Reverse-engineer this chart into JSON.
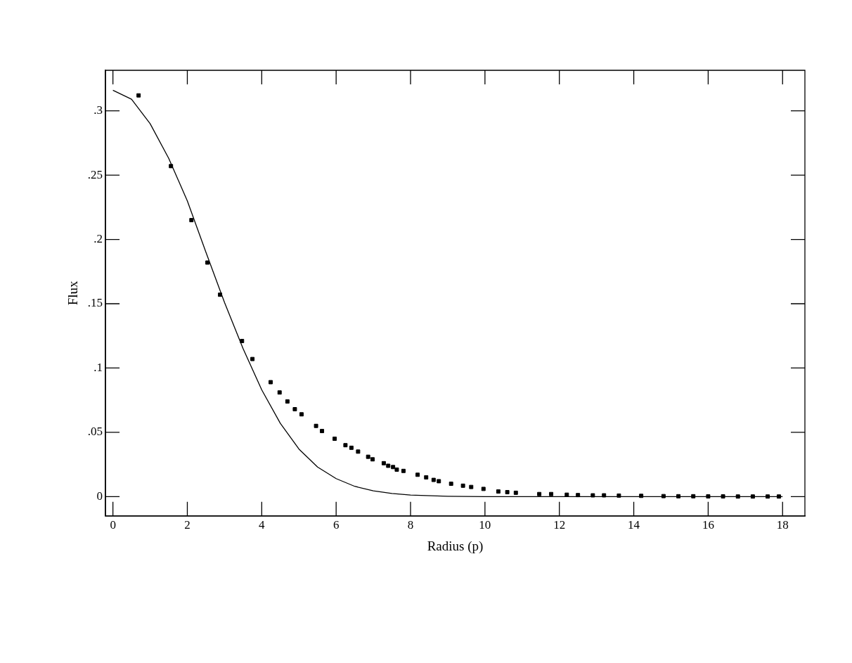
{
  "chart_data": {
    "type": "scatter",
    "xlabel": "Radius (p)",
    "ylabel": "Flux",
    "xlim": [
      -0.2,
      18.6
    ],
    "ylim": [
      -0.015,
      0.3315
    ],
    "xticks": [
      0,
      2,
      4,
      6,
      8,
      10,
      12,
      14,
      16,
      18
    ],
    "yticks": [
      0,
      {
        "value": 0.05,
        "label": ".05"
      },
      {
        "value": 0.1,
        "label": ".1"
      },
      {
        "value": 0.15,
        "label": ".15"
      },
      {
        "value": 0.2,
        "label": ".2"
      },
      {
        "value": 0.25,
        "label": ".25"
      },
      {
        "value": 0.3,
        "label": ".3"
      }
    ],
    "grid": false,
    "legend": false,
    "marker": "square",
    "series": [
      {
        "type": "scatter",
        "color": "#000000",
        "x": [
          0.69,
          1.56,
          2.11,
          2.54,
          2.88,
          3.47,
          3.75,
          4.24,
          4.48,
          4.69,
          4.89,
          5.07,
          5.46,
          5.62,
          5.96,
          6.25,
          6.41,
          6.59,
          6.86,
          6.98,
          7.28,
          7.4,
          7.53,
          7.63,
          7.81,
          8.19,
          8.42,
          8.62,
          8.76,
          9.09,
          9.41,
          9.63,
          9.96,
          10.36,
          10.6,
          10.83,
          11.46,
          11.78,
          12.2,
          12.5,
          12.9,
          13.2,
          13.6,
          14.2,
          14.8,
          15.2,
          15.6,
          16.0,
          16.4,
          16.8,
          17.2,
          17.6,
          17.9
        ],
        "values": [
          0.312,
          0.257,
          0.215,
          0.182,
          0.157,
          0.121,
          0.107,
          0.089,
          0.081,
          0.074,
          0.068,
          0.064,
          0.055,
          0.051,
          0.045,
          0.04,
          0.038,
          0.035,
          0.031,
          0.029,
          0.026,
          0.024,
          0.023,
          0.021,
          0.02,
          0.017,
          0.015,
          0.013,
          0.012,
          0.01,
          0.0085,
          0.0075,
          0.006,
          0.004,
          0.0035,
          0.003,
          0.002,
          0.002,
          0.0015,
          0.0012,
          0.001,
          0.001,
          0.0008,
          0.0006,
          0.0004,
          0.0003,
          0.0003,
          0.0002,
          0.0002,
          0.0001,
          0.0001,
          0.0001,
          0.0001
        ]
      },
      {
        "type": "line",
        "color": "#000000",
        "marker": "none",
        "line_style": "solid",
        "x": [
          0,
          0.5,
          1,
          1.5,
          2,
          2.5,
          3,
          3.5,
          4,
          4.5,
          5,
          5.5,
          6,
          6.5,
          7,
          7.5,
          8,
          9,
          10,
          12,
          14,
          16,
          18
        ],
        "values": [
          0.316,
          0.309,
          0.29,
          0.263,
          0.23,
          0.19,
          0.151,
          0.115,
          0.083,
          0.057,
          0.037,
          0.023,
          0.014,
          0.008,
          0.0045,
          0.0025,
          0.0012,
          0.0003,
          0,
          0,
          0,
          0,
          0
        ]
      }
    ]
  }
}
